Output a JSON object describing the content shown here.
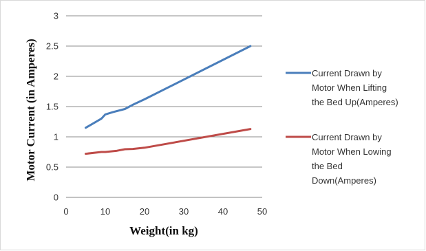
{
  "chart_data": {
    "type": "line",
    "title": "",
    "xlabel": "Weight(in kg)",
    "ylabel": "Motor Current (in Amperes)",
    "xlim": [
      0,
      50
    ],
    "ylim": [
      0,
      3
    ],
    "x_ticks": [
      "0",
      "10",
      "20",
      "30",
      "40",
      "50"
    ],
    "y_ticks": [
      "0",
      "0.5",
      "1",
      "1.5",
      "2",
      "2.5",
      "3"
    ],
    "grid": "horizontal",
    "legend_position": "right",
    "series": [
      {
        "name": "Current Drawn by Motor When Lifting the Bed Up(Amperes)",
        "legend_lines": [
          "Current Drawn by",
          "Motor When Lifting",
          "the Bed Up(Amperes)"
        ],
        "color": "#4a7ebb",
        "points": [
          [
            5,
            1.15
          ],
          [
            9,
            1.3
          ],
          [
            10,
            1.37
          ],
          [
            12,
            1.41
          ],
          [
            15,
            1.46
          ],
          [
            17,
            1.53
          ],
          [
            20,
            1.62
          ],
          [
            47,
            2.5
          ]
        ]
      },
      {
        "name": "Current Drawn  by Motor When Lowing the Bed Down(Amperes)",
        "legend_lines": [
          "Current Drawn  by",
          "Motor When Lowing",
          "the Bed",
          "Down(Amperes)"
        ],
        "color": "#be4b48",
        "points": [
          [
            5,
            0.72
          ],
          [
            9,
            0.75
          ],
          [
            10,
            0.75
          ],
          [
            13,
            0.77
          ],
          [
            15,
            0.795
          ],
          [
            17,
            0.8
          ],
          [
            20,
            0.82
          ],
          [
            47,
            1.13
          ]
        ]
      }
    ]
  }
}
